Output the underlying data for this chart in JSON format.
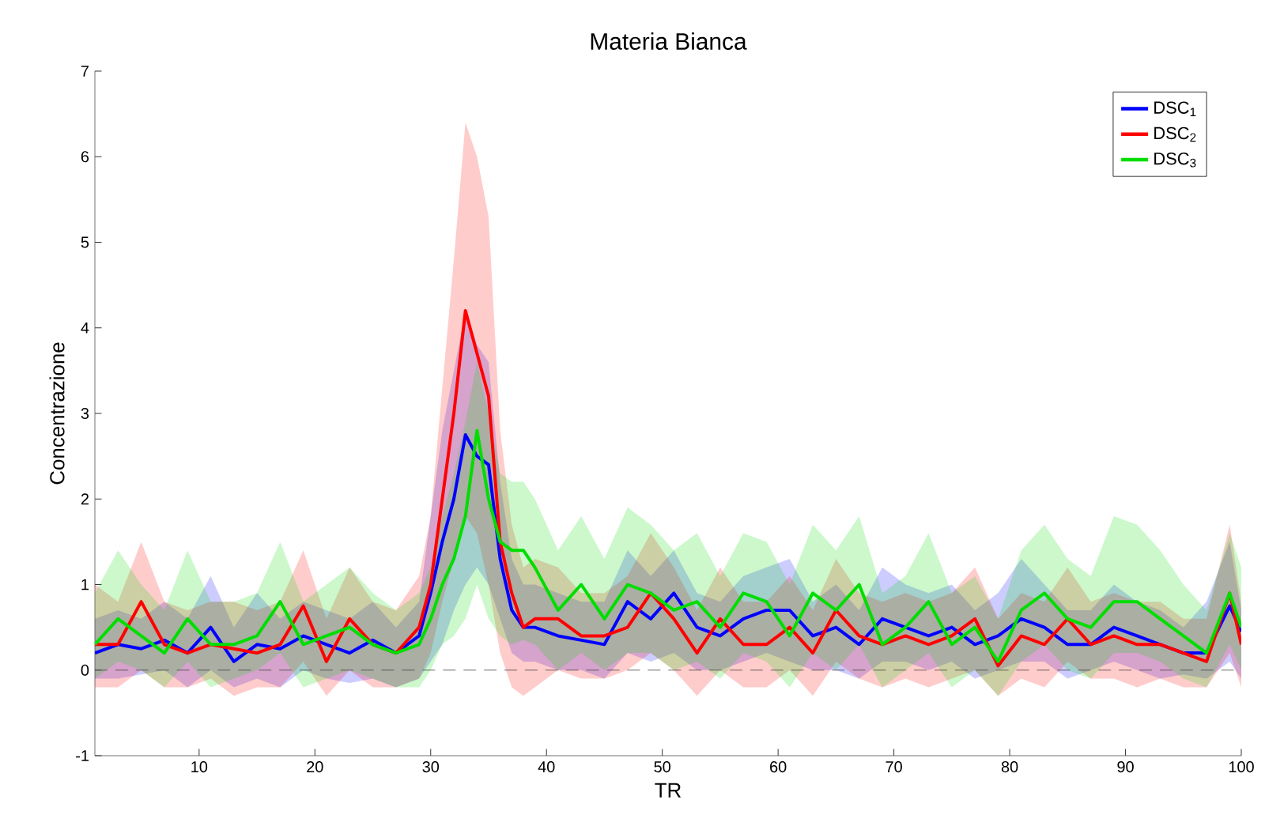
{
  "chart_data": {
    "type": "line",
    "title": "Materia Bianca",
    "xlabel": "TR",
    "ylabel": "Concentrazione",
    "xlim": [
      1,
      100
    ],
    "ylim": [
      -1,
      7
    ],
    "xticks": [
      10,
      20,
      30,
      40,
      50,
      60,
      70,
      80,
      90,
      100
    ],
    "yticks": [
      -1,
      0,
      1,
      2,
      3,
      4,
      5,
      6,
      7
    ],
    "legend": "top right",
    "line_style": "solid",
    "marker": "none",
    "ref_lines": [
      {
        "axis": "y",
        "value": 0,
        "color": "#404040",
        "line_style": "dashed"
      }
    ],
    "x": [
      1,
      3,
      5,
      7,
      9,
      11,
      13,
      15,
      17,
      19,
      21,
      23,
      25,
      27,
      29,
      30,
      31,
      32,
      33,
      34,
      35,
      36,
      37,
      38,
      39,
      41,
      43,
      45,
      47,
      49,
      51,
      53,
      55,
      57,
      59,
      61,
      63,
      65,
      67,
      69,
      71,
      73,
      75,
      77,
      79,
      81,
      83,
      85,
      87,
      89,
      91,
      93,
      95,
      97,
      99,
      100
    ],
    "series": [
      {
        "name": "DSC$_{1}$",
        "color": "#0000ff",
        "values": [
          0.2,
          0.3,
          0.25,
          0.35,
          0.2,
          0.5,
          0.1,
          0.3,
          0.25,
          0.4,
          0.3,
          0.2,
          0.35,
          0.2,
          0.4,
          0.9,
          1.5,
          2.0,
          2.75,
          2.5,
          2.4,
          1.3,
          0.7,
          0.5,
          0.5,
          0.4,
          0.35,
          0.3,
          0.8,
          0.6,
          0.9,
          0.5,
          0.4,
          0.6,
          0.7,
          0.7,
          0.4,
          0.5,
          0.3,
          0.6,
          0.5,
          0.4,
          0.5,
          0.3,
          0.4,
          0.6,
          0.5,
          0.3,
          0.3,
          0.5,
          0.4,
          0.3,
          0.2,
          0.2,
          0.75,
          0.45
        ],
        "lower": [
          -0.1,
          -0.1,
          -0.05,
          0,
          -0.2,
          0,
          -0.2,
          -0.1,
          -0.2,
          0,
          -0.1,
          -0.15,
          -0.1,
          -0.2,
          -0.1,
          0.1,
          0.3,
          0.7,
          1.0,
          1.2,
          1.0,
          0.6,
          0.2,
          0.1,
          0.1,
          0,
          0,
          -0.1,
          0.2,
          0.1,
          0.2,
          0,
          0,
          0.1,
          0.2,
          0.1,
          0,
          0,
          -0.1,
          0.1,
          0.1,
          0,
          0.1,
          -0.1,
          0,
          0.1,
          0.1,
          -0.1,
          0,
          0.1,
          0,
          -0.1,
          -0.05,
          -0.1,
          0.1,
          -0.1
        ],
        "upper": [
          0.6,
          0.7,
          0.6,
          0.8,
          0.6,
          1.1,
          0.5,
          0.9,
          0.6,
          0.8,
          0.7,
          0.6,
          0.8,
          0.5,
          0.8,
          1.8,
          2.8,
          3.5,
          4.2,
          3.8,
          3.6,
          2.2,
          1.3,
          1.0,
          1.0,
          0.9,
          0.8,
          0.8,
          1.4,
          1.1,
          1.4,
          0.9,
          0.8,
          1.1,
          1.2,
          1.3,
          0.8,
          1.0,
          0.7,
          1.2,
          1.0,
          0.9,
          1.0,
          0.7,
          0.9,
          1.3,
          1.0,
          0.7,
          0.7,
          1.0,
          0.8,
          0.7,
          0.5,
          0.8,
          1.5,
          0.7
        ]
      },
      {
        "name": "DSC$_{2}$",
        "color": "#ff0000",
        "values": [
          0.3,
          0.3,
          0.8,
          0.3,
          0.2,
          0.3,
          0.25,
          0.2,
          0.3,
          0.75,
          0.1,
          0.6,
          0.3,
          0.2,
          0.5,
          1.0,
          2.0,
          3.0,
          4.2,
          3.7,
          3.2,
          1.5,
          0.9,
          0.5,
          0.6,
          0.6,
          0.4,
          0.4,
          0.5,
          0.9,
          0.6,
          0.2,
          0.6,
          0.3,
          0.3,
          0.5,
          0.2,
          0.7,
          0.4,
          0.3,
          0.4,
          0.3,
          0.4,
          0.6,
          0.05,
          0.4,
          0.3,
          0.6,
          0.3,
          0.4,
          0.3,
          0.3,
          0.2,
          0.1,
          0.9,
          0.3
        ],
        "lower": [
          -0.2,
          -0.2,
          0,
          -0.2,
          -0.2,
          -0.1,
          -0.3,
          -0.2,
          -0.2,
          0.1,
          -0.3,
          0,
          -0.2,
          -0.2,
          -0.1,
          0.2,
          0.8,
          1.3,
          1.8,
          1.6,
          1.0,
          0.2,
          -0.2,
          -0.3,
          -0.2,
          0,
          -0.1,
          -0.1,
          0,
          0.2,
          0,
          -0.3,
          0,
          -0.2,
          -0.2,
          0,
          -0.3,
          0.1,
          -0.1,
          -0.2,
          -0.1,
          -0.2,
          -0.1,
          0,
          -0.3,
          -0.1,
          -0.2,
          0.1,
          -0.1,
          -0.1,
          -0.2,
          -0.1,
          -0.2,
          -0.2,
          0.2,
          -0.2
        ],
        "upper": [
          1.0,
          0.8,
          1.5,
          0.8,
          0.7,
          0.8,
          0.8,
          0.7,
          0.8,
          1.4,
          0.6,
          1.2,
          0.8,
          0.7,
          1.1,
          1.8,
          3.3,
          4.8,
          6.4,
          6.0,
          5.3,
          2.8,
          1.7,
          1.2,
          1.3,
          1.2,
          0.9,
          0.9,
          1.1,
          1.6,
          1.2,
          0.7,
          1.2,
          0.8,
          0.8,
          1.1,
          0.7,
          1.3,
          0.9,
          0.8,
          0.9,
          0.8,
          0.9,
          1.2,
          0.6,
          0.9,
          0.8,
          1.2,
          0.8,
          0.9,
          0.8,
          0.8,
          0.6,
          0.6,
          1.7,
          0.8
        ]
      },
      {
        "name": "DSC$_{3}$",
        "color": "#00dd00",
        "values": [
          0.3,
          0.6,
          0.4,
          0.2,
          0.6,
          0.3,
          0.3,
          0.4,
          0.8,
          0.3,
          0.4,
          0.5,
          0.3,
          0.2,
          0.3,
          0.6,
          1.0,
          1.3,
          1.8,
          2.8,
          2.0,
          1.5,
          1.4,
          1.4,
          1.2,
          0.7,
          1.0,
          0.6,
          1.0,
          0.9,
          0.7,
          0.8,
          0.5,
          0.9,
          0.8,
          0.4,
          0.9,
          0.7,
          1.0,
          0.3,
          0.5,
          0.8,
          0.3,
          0.5,
          0.1,
          0.7,
          0.9,
          0.6,
          0.5,
          0.8,
          0.8,
          0.6,
          0.4,
          0.2,
          0.9,
          0.5
        ],
        "lower": [
          -0.1,
          0.1,
          0,
          -0.2,
          0.1,
          -0.2,
          -0.1,
          0,
          0.2,
          -0.2,
          -0.1,
          0,
          -0.1,
          -0.2,
          -0.2,
          0,
          0.3,
          0.4,
          0.6,
          1.0,
          0.6,
          0.4,
          0.3,
          0.35,
          0.3,
          0,
          0.2,
          0,
          0.2,
          0.2,
          0,
          0.1,
          -0.1,
          0.2,
          0.1,
          -0.2,
          0.2,
          0,
          0.3,
          -0.2,
          0,
          0.2,
          -0.2,
          0,
          -0.3,
          0.1,
          0.3,
          0,
          -0.1,
          0.2,
          0.2,
          0.1,
          -0.1,
          -0.2,
          0.3,
          0
        ],
        "upper": [
          0.9,
          1.4,
          1.0,
          0.7,
          1.4,
          0.8,
          0.8,
          0.9,
          1.5,
          0.8,
          1.0,
          1.2,
          0.9,
          0.7,
          0.9,
          1.2,
          1.8,
          2.3,
          2.9,
          3.6,
          3.0,
          2.3,
          2.2,
          2.2,
          2.0,
          1.4,
          1.8,
          1.3,
          1.9,
          1.7,
          1.4,
          1.6,
          1.1,
          1.6,
          1.5,
          1.0,
          1.7,
          1.4,
          1.8,
          0.9,
          1.1,
          1.6,
          0.9,
          1.1,
          0.6,
          1.4,
          1.7,
          1.3,
          1.1,
          1.8,
          1.7,
          1.4,
          1.0,
          0.7,
          1.6,
          1.2
        ]
      }
    ]
  }
}
